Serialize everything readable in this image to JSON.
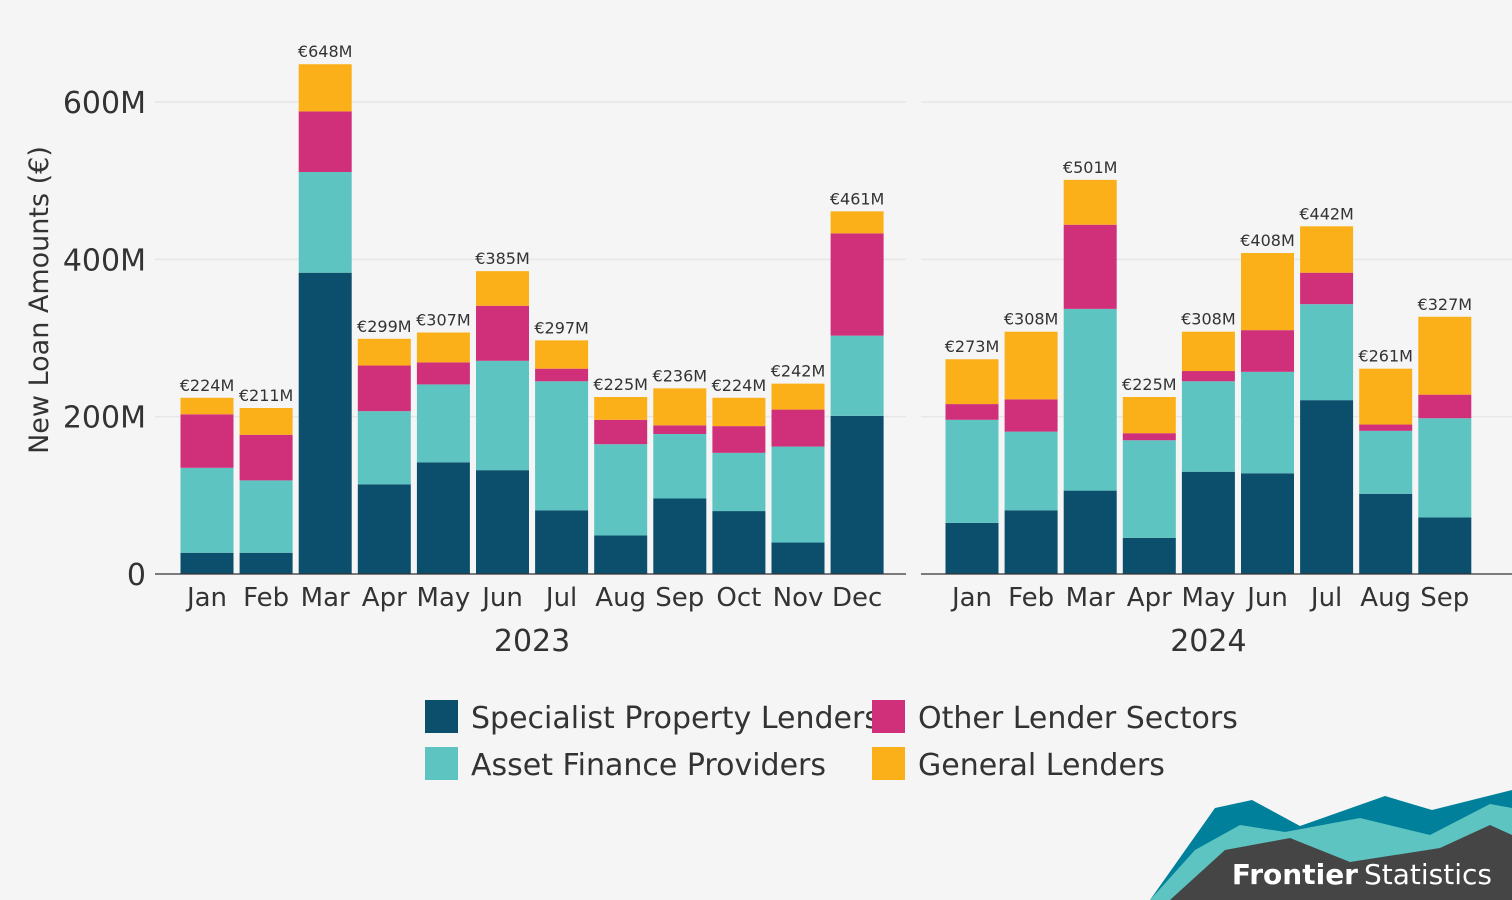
{
  "chart_data": {
    "type": "bar",
    "stacked": true,
    "ylabel": "New Loan Amounts (€)",
    "yticks": [
      0,
      200,
      400,
      600
    ],
    "ytick_labels": [
      "0",
      "200M",
      "400M",
      "600M"
    ],
    "ylim": [
      0,
      680
    ],
    "grid": true,
    "legend_position": "bottom",
    "series_names": [
      "Specialist Property Lenders",
      "Asset Finance Providers",
      "Other Lender Sectors",
      "General Lenders"
    ],
    "colors": [
      "#0b4f6c",
      "#5ec4c1",
      "#d0307a",
      "#fbb01a"
    ],
    "legend_order": [
      0,
      2,
      1,
      3
    ],
    "facets": [
      {
        "label": "2023",
        "categories": [
          "Jan",
          "Feb",
          "Mar",
          "Apr",
          "May",
          "Jun",
          "Jul",
          "Aug",
          "Sep",
          "Oct",
          "Nov",
          "Dec"
        ],
        "totals": [
          "€224M",
          "€211M",
          "€648M",
          "€299M",
          "€307M",
          "€385M",
          "€297M",
          "€225M",
          "€236M",
          "€224M",
          "€242M",
          "€461M"
        ],
        "series": [
          {
            "name": "Specialist Property Lenders",
            "values": [
              27,
              27,
              383,
              114,
              142,
              132,
              81,
              49,
              96,
              80,
              40,
              201
            ]
          },
          {
            "name": "Asset Finance Providers",
            "values": [
              108,
              92,
              128,
              93,
              99,
              139,
              164,
              116,
              82,
              74,
              122,
              102
            ]
          },
          {
            "name": "Other Lender Sectors",
            "values": [
              68,
              58,
              77,
              58,
              28,
              70,
              16,
              31,
              11,
              34,
              47,
              130
            ]
          },
          {
            "name": "General Lenders",
            "values": [
              21,
              34,
              60,
              34,
              38,
              44,
              36,
              29,
              47,
              36,
              33,
              28
            ]
          }
        ]
      },
      {
        "label": "2024",
        "categories": [
          "Jan",
          "Feb",
          "Mar",
          "Apr",
          "May",
          "Jun",
          "Jul",
          "Aug",
          "Sep"
        ],
        "totals": [
          "€273M",
          "€308M",
          "€501M",
          "€225M",
          "€308M",
          "€408M",
          "€442M",
          "€261M",
          "€327M"
        ],
        "series": [
          {
            "name": "Specialist Property Lenders",
            "values": [
              65,
              81,
              106,
              46,
              130,
              128,
              221,
              102,
              72
            ]
          },
          {
            "name": "Asset Finance Providers",
            "values": [
              131,
              100,
              231,
              124,
              115,
              129,
              122,
              80,
              126
            ]
          },
          {
            "name": "Other Lender Sectors",
            "values": [
              20,
              41,
              107,
              9,
              13,
              53,
              40,
              8,
              30
            ]
          },
          {
            "name": "General Lenders",
            "values": [
              57,
              86,
              57,
              46,
              50,
              98,
              59,
              71,
              99
            ]
          }
        ]
      }
    ]
  },
  "branding": {
    "name_bold": "Frontier",
    "name_regular": "Statistics"
  }
}
